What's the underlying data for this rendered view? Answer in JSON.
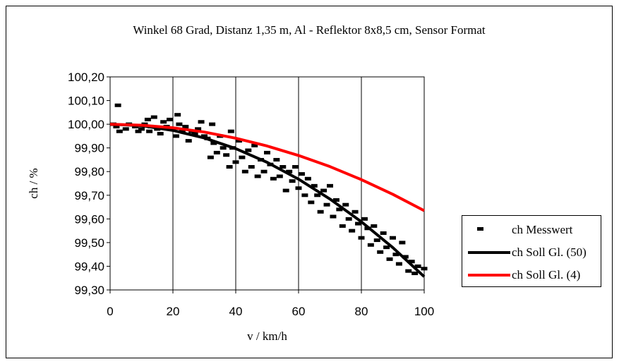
{
  "chart_data": {
    "type": "scatter",
    "title": "Winkel 68 Grad, Distanz 1,35 m, Al - Reflektor 8x8,5 cm, Sensor Format",
    "xlabel": "v / km/h",
    "ylabel": "ch / %",
    "xlim": [
      0,
      100
    ],
    "ylim": [
      99.3,
      100.2
    ],
    "x_ticks": [
      "0",
      "20",
      "40",
      "60",
      "80",
      "100"
    ],
    "y_ticks": [
      "100,20",
      "100,10",
      "100,00",
      "99,90",
      "99,80",
      "99,70",
      "99,60",
      "99,50",
      "99,40",
      "99,30"
    ],
    "grid": "vertical",
    "legend_position": "right",
    "series": [
      {
        "name": "ch Messwert",
        "kind": "scatter",
        "color": "#000000",
        "points": [
          [
            1,
            100.0
          ],
          [
            2,
            99.99
          ],
          [
            2.5,
            100.08
          ],
          [
            3,
            99.97
          ],
          [
            5,
            99.98
          ],
          [
            6,
            100.0
          ],
          [
            8,
            99.99
          ],
          [
            9,
            99.97
          ],
          [
            10,
            99.98
          ],
          [
            11,
            100.0
          ],
          [
            12,
            100.02
          ],
          [
            12.5,
            99.97
          ],
          [
            13,
            99.99
          ],
          [
            14,
            100.03
          ],
          [
            15,
            99.98
          ],
          [
            16,
            99.96
          ],
          [
            17,
            100.01
          ],
          [
            18,
            99.99
          ],
          [
            19,
            100.02
          ],
          [
            20,
            99.98
          ],
          [
            21,
            99.95
          ],
          [
            21.5,
            100.04
          ],
          [
            22,
            100.0
          ],
          [
            23,
            99.97
          ],
          [
            24,
            99.99
          ],
          [
            25,
            99.93
          ],
          [
            26,
            99.97
          ],
          [
            27,
            99.96
          ],
          [
            28,
            99.98
          ],
          [
            29,
            100.01
          ],
          [
            30,
            99.95
          ],
          [
            31,
            99.94
          ],
          [
            32,
            99.86
          ],
          [
            32.5,
            100.0
          ],
          [
            33,
            99.92
          ],
          [
            34,
            99.88
          ],
          [
            35,
            99.95
          ],
          [
            36,
            99.9
          ],
          [
            37,
            99.87
          ],
          [
            38,
            99.82
          ],
          [
            38.5,
            99.97
          ],
          [
            39,
            99.9
          ],
          [
            40,
            99.84
          ],
          [
            41,
            99.93
          ],
          [
            42,
            99.86
          ],
          [
            43,
            99.8
          ],
          [
            44,
            99.89
          ],
          [
            45,
            99.82
          ],
          [
            46,
            99.91
          ],
          [
            47,
            99.78
          ],
          [
            48,
            99.85
          ],
          [
            49,
            99.8
          ],
          [
            50,
            99.88
          ],
          [
            51,
            99.83
          ],
          [
            52,
            99.77
          ],
          [
            53,
            99.85
          ],
          [
            54,
            99.78
          ],
          [
            55,
            99.82
          ],
          [
            56,
            99.72
          ],
          [
            57,
            99.8
          ],
          [
            58,
            99.76
          ],
          [
            59,
            99.82
          ],
          [
            60,
            99.73
          ],
          [
            61,
            99.79
          ],
          [
            62,
            99.7
          ],
          [
            63,
            99.77
          ],
          [
            64,
            99.67
          ],
          [
            65,
            99.74
          ],
          [
            66,
            99.7
          ],
          [
            67,
            99.63
          ],
          [
            68,
            99.72
          ],
          [
            69,
            99.66
          ],
          [
            70,
            99.74
          ],
          [
            71,
            99.61
          ],
          [
            72,
            99.68
          ],
          [
            73,
            99.64
          ],
          [
            74,
            99.57
          ],
          [
            75,
            99.66
          ],
          [
            76,
            99.6
          ],
          [
            77,
            99.55
          ],
          [
            78,
            99.63
          ],
          [
            79,
            99.58
          ],
          [
            80,
            99.52
          ],
          [
            81,
            99.6
          ],
          [
            82,
            99.56
          ],
          [
            83,
            99.49
          ],
          [
            84,
            99.57
          ],
          [
            85,
            99.51
          ],
          [
            86,
            99.46
          ],
          [
            87,
            99.54
          ],
          [
            88,
            99.48
          ],
          [
            89,
            99.43
          ],
          [
            90,
            99.52
          ],
          [
            91,
            99.45
          ],
          [
            92,
            99.41
          ],
          [
            93,
            99.5
          ],
          [
            94,
            99.44
          ],
          [
            95,
            99.38
          ],
          [
            96,
            99.42
          ],
          [
            97,
            99.37
          ],
          [
            98,
            99.4
          ],
          [
            100,
            99.39
          ]
        ]
      },
      {
        "name": "ch Soll Gl. (50)",
        "kind": "line",
        "color": "#000000",
        "x": [
          0,
          10,
          20,
          30,
          40,
          50,
          60,
          70,
          80,
          90,
          100
        ],
        "y": [
          100.0,
          99.994,
          99.974,
          99.942,
          99.897,
          99.839,
          99.768,
          99.684,
          99.588,
          99.479,
          99.356
        ]
      },
      {
        "name": "ch Soll Gl. (4)",
        "kind": "line",
        "color": "#ff0000",
        "x": [
          0,
          10,
          20,
          30,
          40,
          50,
          60,
          70,
          80,
          90,
          100
        ],
        "y": [
          100.0,
          99.996,
          99.985,
          99.967,
          99.941,
          99.908,
          99.868,
          99.821,
          99.766,
          99.704,
          99.635
        ]
      }
    ]
  }
}
